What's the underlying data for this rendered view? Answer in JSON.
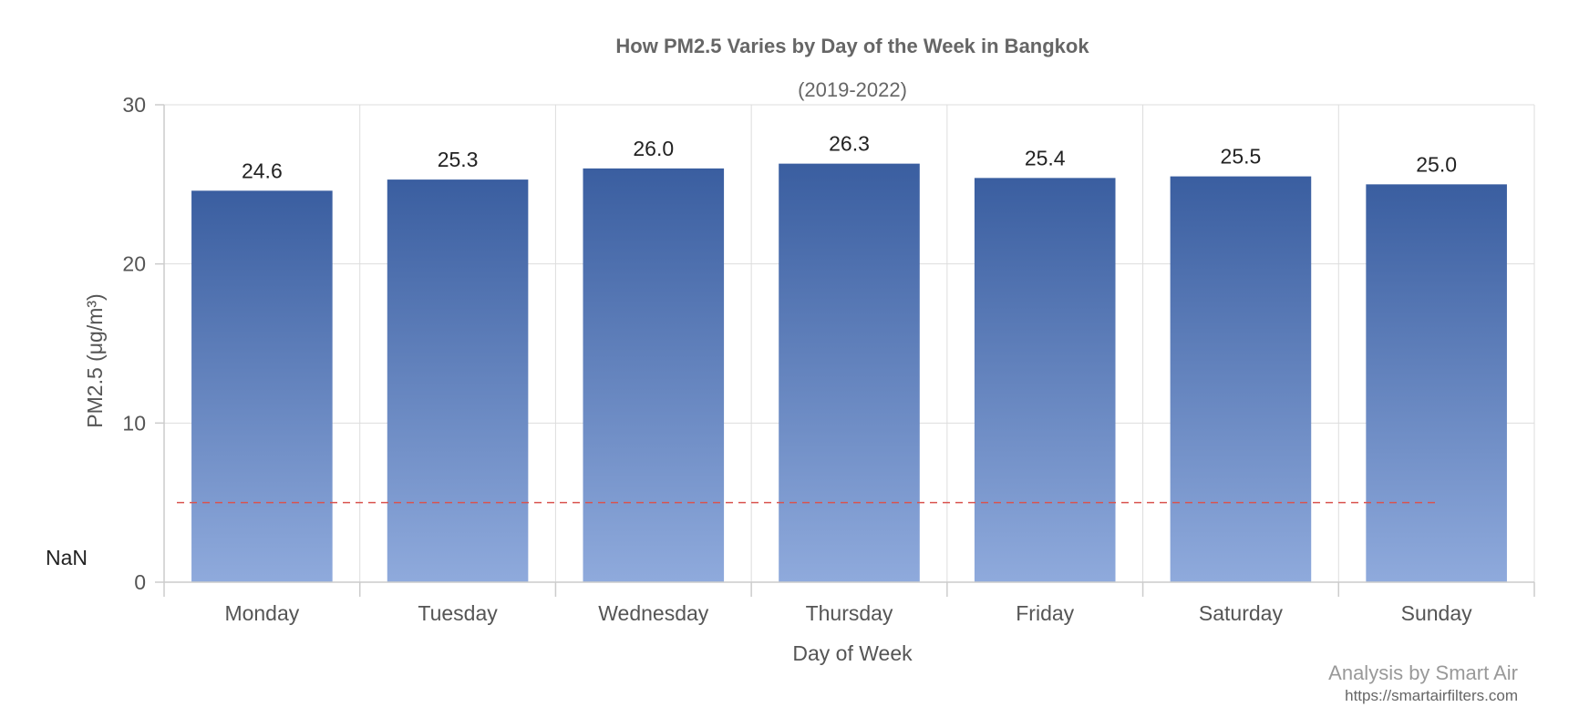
{
  "chart_data": {
    "type": "bar",
    "title": "How PM2.5 Varies by Day of the Week in Bangkok",
    "subtitle": "(2019-2022)",
    "xlabel": "Day of Week",
    "ylabel": "PM2.5 (μg/m³)",
    "categories": [
      "Monday",
      "Tuesday",
      "Wednesday",
      "Thursday",
      "Friday",
      "Saturday",
      "Sunday"
    ],
    "values": [
      24.6,
      25.3,
      26.0,
      26.3,
      25.4,
      25.5,
      25.0
    ],
    "data_labels": [
      "24.6",
      "25.3",
      "26.0",
      "26.3",
      "25.4",
      "25.5",
      "25.0"
    ],
    "ylim": [
      0,
      30
    ],
    "yticks": [
      0,
      10,
      20,
      30
    ],
    "ytick_labels": [
      "0",
      "10",
      "20",
      "30"
    ],
    "grid": true,
    "reference_line": {
      "value": 5,
      "label": "NaN",
      "style": "dashed",
      "color": "#d9534f"
    },
    "bar_gradient": {
      "top": "#3a5ea0",
      "bottom": "#8faadc"
    }
  },
  "credits": {
    "main": "Analysis by Smart Air",
    "url": "https://smartairfilters.com"
  }
}
